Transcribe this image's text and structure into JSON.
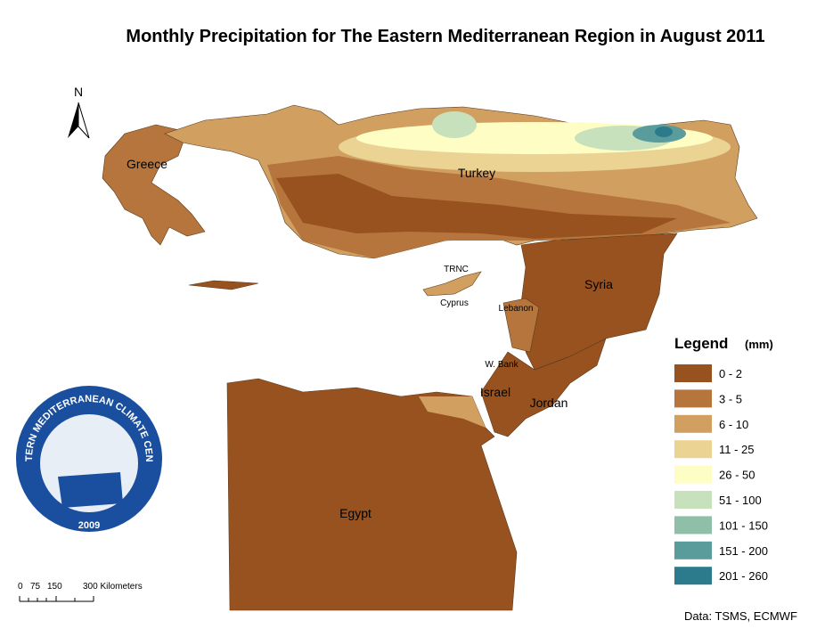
{
  "header": {
    "title": "Monthly Precipitation for The Eastern Mediterranean Region in August 2011"
  },
  "north_arrow": {
    "label": "N"
  },
  "map": {
    "labels": [
      "Greece",
      "Turkey",
      "TRNC",
      "Cyprus",
      "Lebanon",
      "Syria",
      "W. Bank",
      "Israel",
      "Jordan",
      "Egypt"
    ]
  },
  "legend": {
    "title": "Legend",
    "unit": "(mm)",
    "items": [
      {
        "label": "0 - 2",
        "color": "#98521f"
      },
      {
        "label": "3 - 5",
        "color": "#b5753c"
      },
      {
        "label": "6 - 10",
        "color": "#d1a060"
      },
      {
        "label": "11 - 25",
        "color": "#ebd394"
      },
      {
        "label": "26 - 50",
        "color": "#fefec4"
      },
      {
        "label": "51 - 100",
        "color": "#c7e1bc"
      },
      {
        "label": "101 - 150",
        "color": "#8fbea9"
      },
      {
        "label": "151 - 200",
        "color": "#5a9c9c"
      },
      {
        "label": "201 - 260",
        "color": "#2b7b8c"
      }
    ]
  },
  "logo": {
    "name": "EASTERN MEDITERRANEAN CLIMATE CENTRE",
    "year": "2009"
  },
  "scale_bar": {
    "labels": [
      "0",
      "75",
      "150",
      "300 Kilometers"
    ]
  },
  "footer": {
    "source": "Data:  TSMS, ECMWF"
  }
}
